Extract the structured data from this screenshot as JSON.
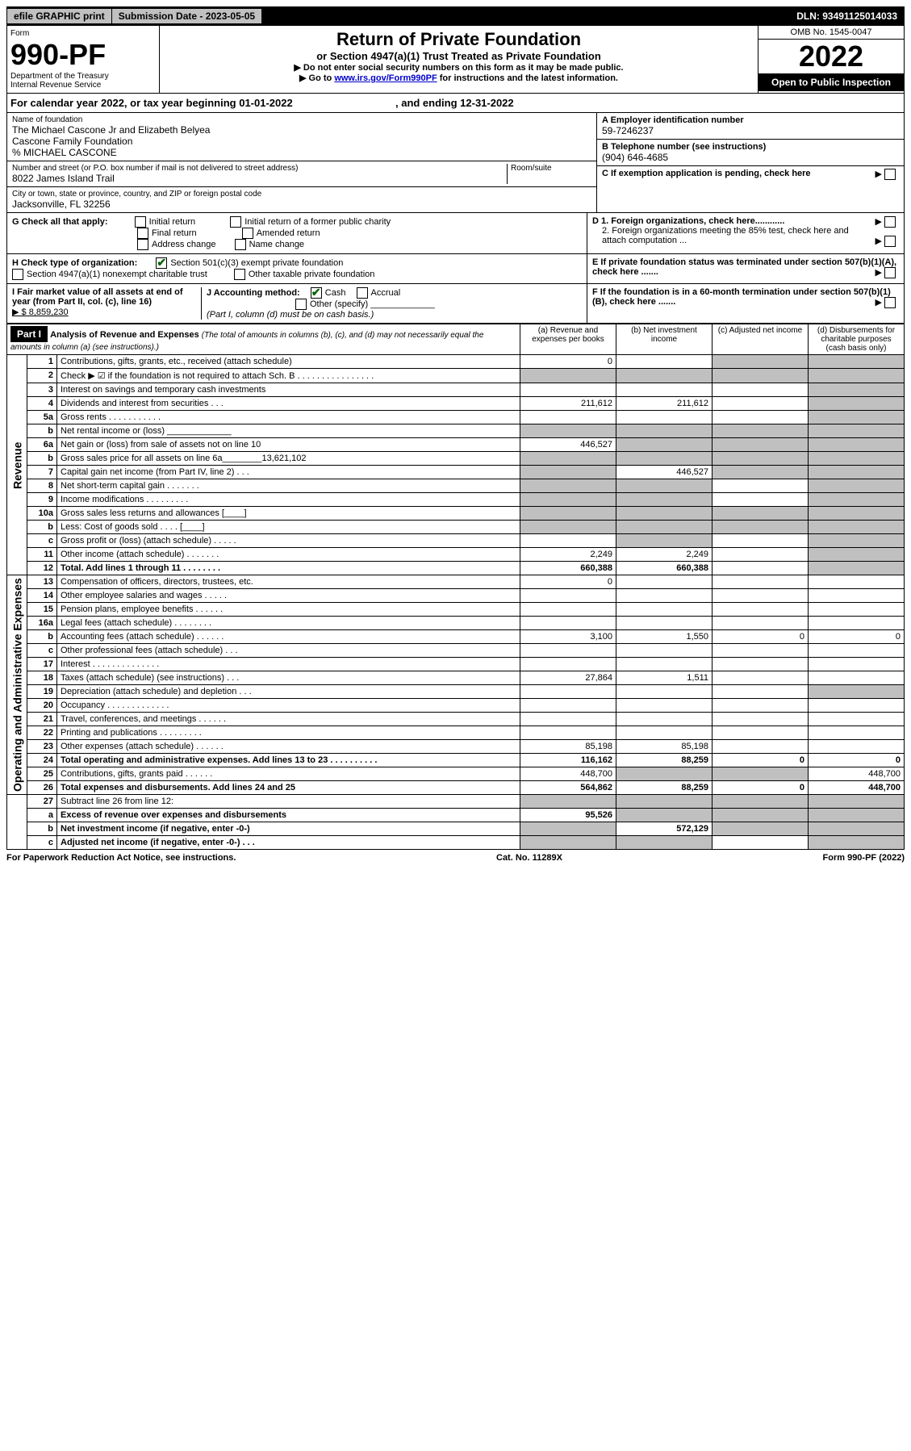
{
  "header": {
    "efile": "efile GRAPHIC print",
    "submission": "Submission Date - 2023-05-05",
    "dln": "DLN: 93491125014033"
  },
  "form_box": {
    "form_label": "Form",
    "form_num": "990-PF",
    "dept": "Department of the Treasury",
    "irs": "Internal Revenue Service",
    "title": "Return of Private Foundation",
    "subtitle": "or Section 4947(a)(1) Trust Treated as Private Foundation",
    "instr1": "▶ Do not enter social security numbers on this form as it may be made public.",
    "instr2_pre": "▶ Go to ",
    "instr2_link": "www.irs.gov/Form990PF",
    "instr2_post": " for instructions and the latest information.",
    "omb": "OMB No. 1545-0047",
    "year": "2022",
    "open": "Open to Public Inspection"
  },
  "cal_year": {
    "text": "For calendar year 2022, or tax year beginning 01-01-2022",
    "mid": ", and ending 12-31-2022"
  },
  "entity": {
    "name_label": "Name of foundation",
    "name1": "The Michael Cascone Jr and Elizabeth Belyea",
    "name2": "Cascone Family Foundation",
    "name3": "% MICHAEL CASCONE",
    "addr_label": "Number and street (or P.O. box number if mail is not delivered to street address)",
    "addr": "8022 James Island Trail",
    "room_label": "Room/suite",
    "city_label": "City or town, state or province, country, and ZIP or foreign postal code",
    "city": "Jacksonville, FL  32256",
    "ein_label": "A Employer identification number",
    "ein": "59-7246237",
    "phone_label": "B Telephone number (see instructions)",
    "phone": "(904) 646-4685",
    "c_label": "C If exemption application is pending, check here"
  },
  "checks": {
    "g_label": "G Check all that apply:",
    "g1": "Initial return",
    "g2": "Final return",
    "g3": "Address change",
    "g4": "Initial return of a former public charity",
    "g5": "Amended return",
    "g6": "Name change",
    "h_label": "H Check type of organization:",
    "h1": "Section 501(c)(3) exempt private foundation",
    "h2": "Section 4947(a)(1) nonexempt charitable trust",
    "h3": "Other taxable private foundation",
    "i_label": "I Fair market value of all assets at end of year (from Part II, col. (c), line 16)",
    "i_val": "▶ $  8,859,230",
    "j_label": "J Accounting method:",
    "j1": "Cash",
    "j2": "Accrual",
    "j3": "Other (specify)",
    "j_note": "(Part I, column (d) must be on cash basis.)",
    "d1": "D 1. Foreign organizations, check here............",
    "d2": "2. Foreign organizations meeting the 85% test, check here and attach computation ...",
    "e": "E  If private foundation status was terminated under section 507(b)(1)(A), check here .......",
    "f": "F  If the foundation is in a 60-month termination under section 507(b)(1)(B), check here .......",
    "arrow": "▶"
  },
  "part1": {
    "label": "Part I",
    "title": "Analysis of Revenue and Expenses",
    "title_note": " (The total of amounts in columns (b), (c), and (d) may not necessarily equal the amounts in column (a) (see instructions).)",
    "col_a": "(a)   Revenue and expenses per books",
    "col_b": "(b)   Net investment income",
    "col_c": "(c)   Adjusted net income",
    "col_d": "(d)   Disbursements for charitable purposes (cash basis only)"
  },
  "side": {
    "revenue": "Revenue",
    "expenses": "Operating and Administrative Expenses"
  },
  "rows": [
    {
      "n": "1",
      "d": "Contributions, gifts, grants, etc., received (attach schedule)",
      "a": "0",
      "b": "",
      "c": "grey",
      "dd": "grey"
    },
    {
      "n": "2",
      "d": "Check ▶ ☑ if the foundation is not required to attach Sch. B   .  .  .  .  .  .  .  .  .  .  .  .  .  .  .  .",
      "a": "grey",
      "b": "grey",
      "c": "grey",
      "dd": "grey"
    },
    {
      "n": "3",
      "d": "Interest on savings and temporary cash investments",
      "a": "",
      "b": "",
      "c": "",
      "dd": "grey"
    },
    {
      "n": "4",
      "d": "Dividends and interest from securities   .   .   .",
      "a": "211,612",
      "b": "211,612",
      "c": "",
      "dd": "grey"
    },
    {
      "n": "5a",
      "d": "Gross rents   .   .   .   .   .   .   .   .   .   .   .",
      "a": "",
      "b": "",
      "c": "",
      "dd": "grey"
    },
    {
      "n": "b",
      "d": "Net rental income or (loss)  _____________",
      "a": "grey",
      "b": "grey",
      "c": "grey",
      "dd": "grey"
    },
    {
      "n": "6a",
      "d": "Net gain or (loss) from sale of assets not on line 10",
      "a": "446,527",
      "b": "grey",
      "c": "grey",
      "dd": "grey"
    },
    {
      "n": "b",
      "d": "Gross sales price for all assets on line 6a________13,621,102",
      "a": "grey",
      "b": "grey",
      "c": "grey",
      "dd": "grey"
    },
    {
      "n": "7",
      "d": "Capital gain net income (from Part IV, line 2)   .   .   .",
      "a": "grey",
      "b": "446,527",
      "c": "grey",
      "dd": "grey"
    },
    {
      "n": "8",
      "d": "Net short-term capital gain  .   .   .   .   .   .   .",
      "a": "grey",
      "b": "grey",
      "c": "",
      "dd": "grey"
    },
    {
      "n": "9",
      "d": "Income modifications  .   .   .   .   .   .   .   .   .",
      "a": "grey",
      "b": "grey",
      "c": "",
      "dd": "grey"
    },
    {
      "n": "10a",
      "d": "Gross sales less returns and allowances  [____]",
      "a": "grey",
      "b": "grey",
      "c": "grey",
      "dd": "grey"
    },
    {
      "n": "b",
      "d": "Less: Cost of goods sold   .   .   .   .   [____]",
      "a": "grey",
      "b": "grey",
      "c": "grey",
      "dd": "grey"
    },
    {
      "n": "c",
      "d": "Gross profit or (loss) (attach schedule)   .   .   .   .   .",
      "a": "",
      "b": "grey",
      "c": "",
      "dd": "grey"
    },
    {
      "n": "11",
      "d": "Other income (attach schedule)   .   .   .   .   .   .   .",
      "a": "2,249",
      "b": "2,249",
      "c": "",
      "dd": "grey"
    },
    {
      "n": "12",
      "d": "Total. Add lines 1 through 11   .   .   .   .   .   .   .   .",
      "a": "660,388",
      "b": "660,388",
      "c": "",
      "dd": "grey",
      "bold": true
    }
  ],
  "rows2": [
    {
      "n": "13",
      "d": "Compensation of officers, directors, trustees, etc.",
      "a": "0",
      "b": "",
      "c": "",
      "dd": ""
    },
    {
      "n": "14",
      "d": "Other employee salaries and wages   .   .   .   .   .",
      "a": "",
      "b": "",
      "c": "",
      "dd": ""
    },
    {
      "n": "15",
      "d": "Pension plans, employee benefits  .   .   .   .   .   .",
      "a": "",
      "b": "",
      "c": "",
      "dd": ""
    },
    {
      "n": "16a",
      "d": "Legal fees (attach schedule)  .   .   .   .   .   .   .   .",
      "a": "",
      "b": "",
      "c": "",
      "dd": ""
    },
    {
      "n": "b",
      "d": "Accounting fees (attach schedule)  .   .   .   .   .   .",
      "a": "3,100",
      "b": "1,550",
      "c": "0",
      "dd": "0"
    },
    {
      "n": "c",
      "d": "Other professional fees (attach schedule)   .   .   .",
      "a": "",
      "b": "",
      "c": "",
      "dd": ""
    },
    {
      "n": "17",
      "d": "Interest  .   .   .   .   .   .   .   .   .   .   .   .   .   .",
      "a": "",
      "b": "",
      "c": "",
      "dd": ""
    },
    {
      "n": "18",
      "d": "Taxes (attach schedule) (see instructions)    .   .   .",
      "a": "27,864",
      "b": "1,511",
      "c": "",
      "dd": ""
    },
    {
      "n": "19",
      "d": "Depreciation (attach schedule) and depletion   .   .   .",
      "a": "",
      "b": "",
      "c": "",
      "dd": "grey"
    },
    {
      "n": "20",
      "d": "Occupancy  .   .   .   .   .   .   .   .   .   .   .   .   .",
      "a": "",
      "b": "",
      "c": "",
      "dd": ""
    },
    {
      "n": "21",
      "d": "Travel, conferences, and meetings  .   .   .   .   .   .",
      "a": "",
      "b": "",
      "c": "",
      "dd": ""
    },
    {
      "n": "22",
      "d": "Printing and publications  .   .   .   .   .   .   .   .   .",
      "a": "",
      "b": "",
      "c": "",
      "dd": ""
    },
    {
      "n": "23",
      "d": "Other expenses (attach schedule)  .   .   .   .   .   .",
      "a": "85,198",
      "b": "85,198",
      "c": "",
      "dd": ""
    },
    {
      "n": "24",
      "d": "Total operating and administrative expenses. Add lines 13 to 23  .   .   .   .   .   .   .   .   .   .",
      "a": "116,162",
      "b": "88,259",
      "c": "0",
      "dd": "0",
      "bold": true
    },
    {
      "n": "25",
      "d": "Contributions, gifts, grants paid    .   .   .   .   .   .",
      "a": "448,700",
      "b": "grey",
      "c": "grey",
      "dd": "448,700"
    },
    {
      "n": "26",
      "d": "Total expenses and disbursements. Add lines 24 and 25",
      "a": "564,862",
      "b": "88,259",
      "c": "0",
      "dd": "448,700",
      "bold": true
    }
  ],
  "rows3": [
    {
      "n": "27",
      "d": "Subtract line 26 from line 12:",
      "a": "grey",
      "b": "grey",
      "c": "grey",
      "dd": "grey"
    },
    {
      "n": "a",
      "d": "Excess of revenue over expenses and disbursements",
      "a": "95,526",
      "b": "grey",
      "c": "grey",
      "dd": "grey",
      "bold": true
    },
    {
      "n": "b",
      "d": "Net investment income (if negative, enter -0-)",
      "a": "grey",
      "b": "572,129",
      "c": "grey",
      "dd": "grey",
      "bold": true
    },
    {
      "n": "c",
      "d": "Adjusted net income (if negative, enter -0-)   .   .   .",
      "a": "grey",
      "b": "grey",
      "c": "",
      "dd": "grey",
      "bold": true
    }
  ],
  "footer": {
    "left": "For Paperwork Reduction Act Notice, see instructions.",
    "mid": "Cat. No. 11289X",
    "right": "Form 990-PF (2022)"
  }
}
